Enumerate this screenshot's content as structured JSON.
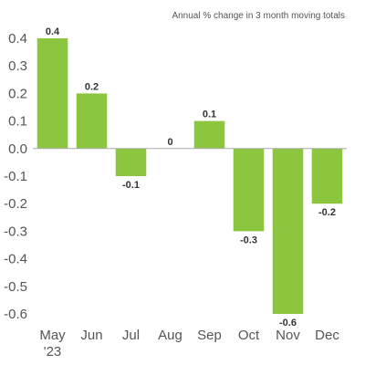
{
  "chart_data": {
    "type": "bar",
    "subtitle": "Annual % change in 3 month moving totals",
    "categories": [
      "May\n'23",
      "Jun",
      "Jul",
      "Aug",
      "Sep",
      "Oct",
      "Nov",
      "Dec"
    ],
    "values": [
      0.4,
      0.2,
      -0.1,
      0,
      0.1,
      -0.3,
      -0.6,
      -0.2
    ],
    "data_labels": [
      "0.4",
      "0.2",
      "-0.1",
      "0",
      "0.1",
      "-0.3",
      "-0.6",
      "-0.2"
    ],
    "yticks": [
      0.4,
      0.3,
      0.2,
      0.1,
      0.0,
      -0.1,
      -0.2,
      -0.3,
      -0.4,
      -0.5,
      -0.6
    ],
    "ytick_labels": [
      "0.4",
      "0.3",
      "0.2",
      "0.1",
      "0.0",
      "-0.1",
      "-0.2",
      "-0.3",
      "-0.4",
      "-0.5",
      "-0.6"
    ],
    "ylim": [
      -0.6,
      0.4
    ],
    "bar_color": "#8cc63f",
    "axis_color": "#aaaaaa",
    "grid": false,
    "legend": "none"
  }
}
